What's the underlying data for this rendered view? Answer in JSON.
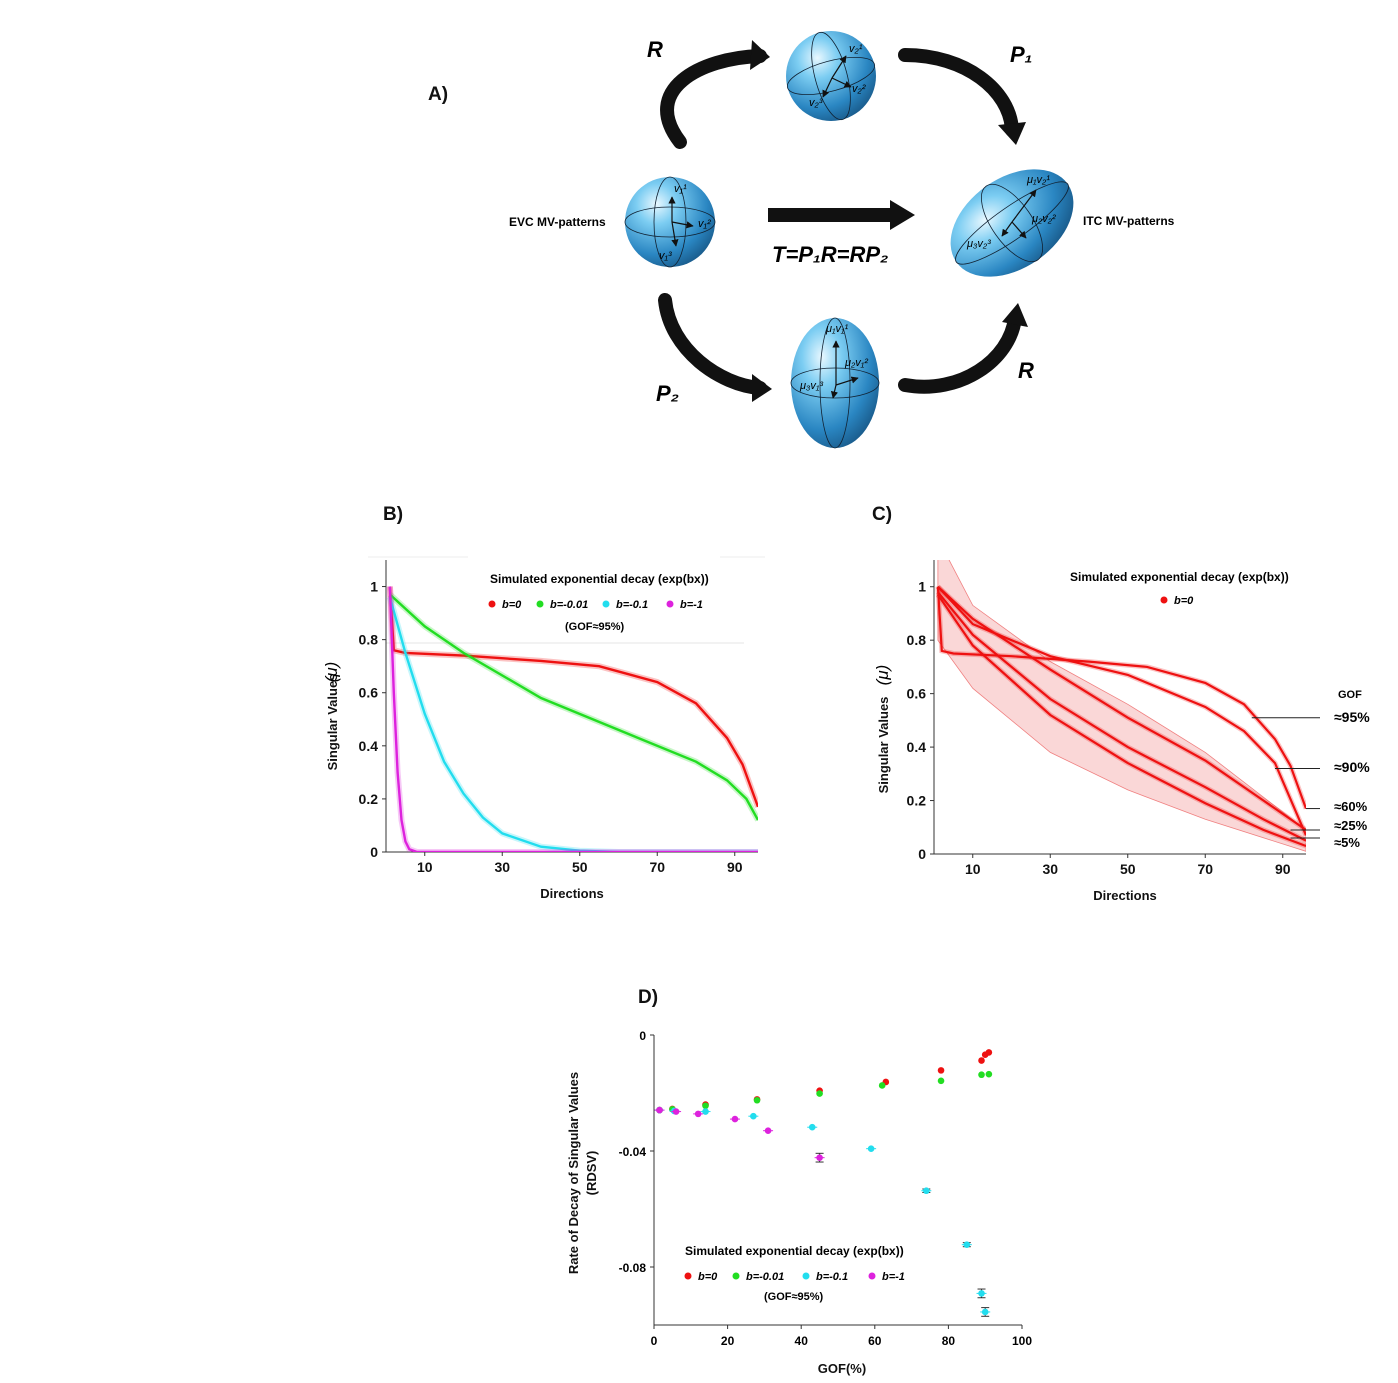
{
  "panels": {
    "a": "A)",
    "b": "B)",
    "c": "C)",
    "d": "D)"
  },
  "diagram": {
    "left_label": "EVC MV-patterns",
    "right_label": "ITC MV-patterns",
    "equation": "T=P₁R=RP₂",
    "arrow_labels": {
      "top_left": "R",
      "top_right": "P₁",
      "bottom_left": "P₂",
      "bottom_right": "R"
    },
    "sphere_left": [
      "v₁¹",
      "v₁²",
      "v₁³"
    ],
    "sphere_top": [
      "v₂¹",
      "v₂²",
      "v₂³"
    ],
    "ellipsoid_bottom": [
      "μ₁v₁¹",
      "μ₂v₁²",
      "μ₃v₁³"
    ],
    "ellipsoid_right": [
      "μ₁v₂¹",
      "μ₂v₂²",
      "μ₃v₂³"
    ],
    "colors": {
      "sphere_light": "#cfeefb",
      "sphere_mid": "#5bb8e6",
      "sphere_dark": "#1f6fa6"
    }
  },
  "legend": {
    "title": "Simulated exponential decay (exp(bx))",
    "entries": [
      {
        "label": "b=0",
        "color": "#ee1111"
      },
      {
        "label": "b=-0.01",
        "color": "#22dd22"
      },
      {
        "label": "b=-0.1",
        "color": "#22ddee"
      },
      {
        "label": "b=-1",
        "color": "#dd22dd"
      }
    ],
    "note": "(GOF≈95%)"
  },
  "gof_header": "GOF",
  "chart_data": [
    {
      "id": "B",
      "type": "line",
      "xlabel": "Directions",
      "ylabel": "Singular Values",
      "ylabel_symbol": "(μ)",
      "xlim": [
        0,
        96
      ],
      "ylim": [
        0,
        1.1
      ],
      "xticks": [
        "10",
        "30",
        "50",
        "70",
        "90"
      ],
      "yticks": [
        "0",
        "0.2",
        "0.4",
        "0.6",
        "0.8",
        "1"
      ],
      "series": [
        {
          "name": "b=0",
          "color": "#ee1111",
          "points": [
            [
              1,
              1.0
            ],
            [
              2,
              0.76
            ],
            [
              5,
              0.75
            ],
            [
              20,
              0.74
            ],
            [
              40,
              0.72
            ],
            [
              55,
              0.7
            ],
            [
              70,
              0.64
            ],
            [
              80,
              0.56
            ],
            [
              88,
              0.43
            ],
            [
              92,
              0.33
            ],
            [
              96,
              0.17
            ]
          ]
        },
        {
          "name": "b=-0.01",
          "color": "#22dd22",
          "points": [
            [
              1,
              0.97
            ],
            [
              10,
              0.85
            ],
            [
              20,
              0.75
            ],
            [
              40,
              0.58
            ],
            [
              60,
              0.46
            ],
            [
              80,
              0.34
            ],
            [
              88,
              0.27
            ],
            [
              93,
              0.2
            ],
            [
              96,
              0.12
            ]
          ]
        },
        {
          "name": "b=-0.1",
          "color": "#22ddee",
          "points": [
            [
              1,
              0.96
            ],
            [
              5,
              0.75
            ],
            [
              10,
              0.52
            ],
            [
              15,
              0.34
            ],
            [
              20,
              0.22
            ],
            [
              25,
              0.13
            ],
            [
              30,
              0.07
            ],
            [
              40,
              0.02
            ],
            [
              50,
              0.005
            ],
            [
              60,
              0
            ],
            [
              96,
              0
            ]
          ]
        },
        {
          "name": "b=-1",
          "color": "#dd22dd",
          "points": [
            [
              1,
              1.0
            ],
            [
              2,
              0.6
            ],
            [
              3,
              0.3
            ],
            [
              4,
              0.12
            ],
            [
              5,
              0.04
            ],
            [
              6,
              0.01
            ],
            [
              8,
              0
            ],
            [
              96,
              0
            ]
          ]
        }
      ]
    },
    {
      "id": "C",
      "type": "line",
      "xlabel": "Directions",
      "ylabel": "Singular Values",
      "ylabel_symbol": "(μ)",
      "legend_entry": "b=0",
      "xlim": [
        0,
        96
      ],
      "ylim": [
        0,
        1.1
      ],
      "xticks": [
        "10",
        "30",
        "50",
        "70",
        "90"
      ],
      "yticks": [
        "0",
        "0.2",
        "0.4",
        "0.6",
        "0.8",
        "1"
      ],
      "gof_labels": [
        "≈95%",
        "≈90%",
        "≈60%",
        "≈25%",
        "≈5%"
      ],
      "series": [
        {
          "gof": "≈95%",
          "points": [
            [
              1,
              1.0
            ],
            [
              2,
              0.76
            ],
            [
              5,
              0.75
            ],
            [
              20,
              0.74
            ],
            [
              40,
              0.72
            ],
            [
              55,
              0.7
            ],
            [
              70,
              0.64
            ],
            [
              80,
              0.56
            ],
            [
              88,
              0.43
            ],
            [
              92,
              0.33
            ],
            [
              96,
              0.17
            ]
          ]
        },
        {
          "gof": "≈90%",
          "points": [
            [
              1,
              1.0
            ],
            [
              10,
              0.86
            ],
            [
              30,
              0.74
            ],
            [
              50,
              0.67
            ],
            [
              70,
              0.55
            ],
            [
              80,
              0.46
            ],
            [
              88,
              0.34
            ],
            [
              96,
              0.07
            ]
          ]
        },
        {
          "gof": "≈60%",
          "points": [
            [
              1,
              1.0
            ],
            [
              10,
              0.88
            ],
            [
              30,
              0.69
            ],
            [
              50,
              0.51
            ],
            [
              70,
              0.35
            ],
            [
              85,
              0.2
            ],
            [
              96,
              0.09
            ]
          ]
        },
        {
          "gof": "≈25%",
          "points": [
            [
              1,
              0.98
            ],
            [
              10,
              0.82
            ],
            [
              30,
              0.58
            ],
            [
              50,
              0.4
            ],
            [
              70,
              0.25
            ],
            [
              85,
              0.13
            ],
            [
              96,
              0.05
            ]
          ]
        },
        {
          "gof": "≈5%",
          "points": [
            [
              1,
              0.97
            ],
            [
              10,
              0.78
            ],
            [
              30,
              0.52
            ],
            [
              50,
              0.34
            ],
            [
              70,
              0.19
            ],
            [
              85,
              0.09
            ],
            [
              96,
              0.03
            ]
          ]
        }
      ],
      "band": {
        "upper": [
          [
            1,
            1.18
          ],
          [
            10,
            0.93
          ],
          [
            30,
            0.72
          ],
          [
            50,
            0.56
          ],
          [
            70,
            0.38
          ],
          [
            96,
            0.09
          ]
        ],
        "lower": [
          [
            1,
            0.8
          ],
          [
            10,
            0.62
          ],
          [
            30,
            0.38
          ],
          [
            50,
            0.24
          ],
          [
            70,
            0.13
          ],
          [
            96,
            0.01
          ]
        ]
      }
    },
    {
      "id": "D",
      "type": "scatter",
      "xlabel": "GOF(%)",
      "ylabel": "Rate of Decay of Singular Values",
      "ylabel_abbr": "(RDSV)",
      "xlim": [
        0,
        100
      ],
      "ylim": [
        -0.1,
        0
      ],
      "xticks": [
        "0",
        "20",
        "40",
        "60",
        "80",
        "100"
      ],
      "yticks": [
        "0",
        "-0.04",
        "-0.08"
      ],
      "series": [
        {
          "name": "b=0",
          "color": "#ee1111",
          "points": [
            [
              1.5,
              -0.0259
            ],
            [
              5,
              -0.0255
            ],
            [
              14,
              -0.024
            ],
            [
              28,
              -0.0222
            ],
            [
              45,
              -0.0192
            ],
            [
              63,
              -0.0162
            ],
            [
              78,
              -0.0122
            ],
            [
              89,
              -0.0088
            ],
            [
              90,
              -0.0068
            ],
            [
              91,
              -0.006
            ]
          ]
        },
        {
          "name": "b=-0.01",
          "color": "#22dd22",
          "points": [
            [
              1.5,
              -0.0259
            ],
            [
              5,
              -0.0256
            ],
            [
              14,
              -0.0244
            ],
            [
              28,
              -0.0225
            ],
            [
              45,
              -0.0202
            ],
            [
              62,
              -0.0174
            ],
            [
              78,
              -0.0158
            ],
            [
              89,
              -0.0137
            ],
            [
              91,
              -0.0135
            ]
          ]
        },
        {
          "name": "b=-0.1",
          "color": "#22ddee",
          "points": [
            [
              1.5,
              -0.0259
            ],
            [
              5.5,
              -0.0262
            ],
            [
              14,
              -0.0264
            ],
            [
              27,
              -0.028
            ],
            [
              43,
              -0.0318
            ],
            [
              59,
              -0.0392
            ],
            [
              74,
              -0.0537
            ],
            [
              85,
              -0.0723
            ],
            [
              89,
              -0.0891
            ],
            [
              90,
              -0.0955
            ]
          ],
          "errors": [
            0,
            0,
            0,
            0,
            0,
            0,
            0.0006,
            0.0007,
            0.0015,
            0.0015
          ]
        },
        {
          "name": "b=-1",
          "color": "#dd22dd",
          "points": [
            [
              1.5,
              -0.0259
            ],
            [
              6,
              -0.0264
            ],
            [
              12,
              -0.0272
            ],
            [
              22,
              -0.029
            ],
            [
              31,
              -0.033
            ],
            [
              45,
              -0.0423
            ]
          ],
          "errors": [
            0,
            0,
            0,
            0,
            0,
            0.0015
          ]
        }
      ]
    }
  ]
}
